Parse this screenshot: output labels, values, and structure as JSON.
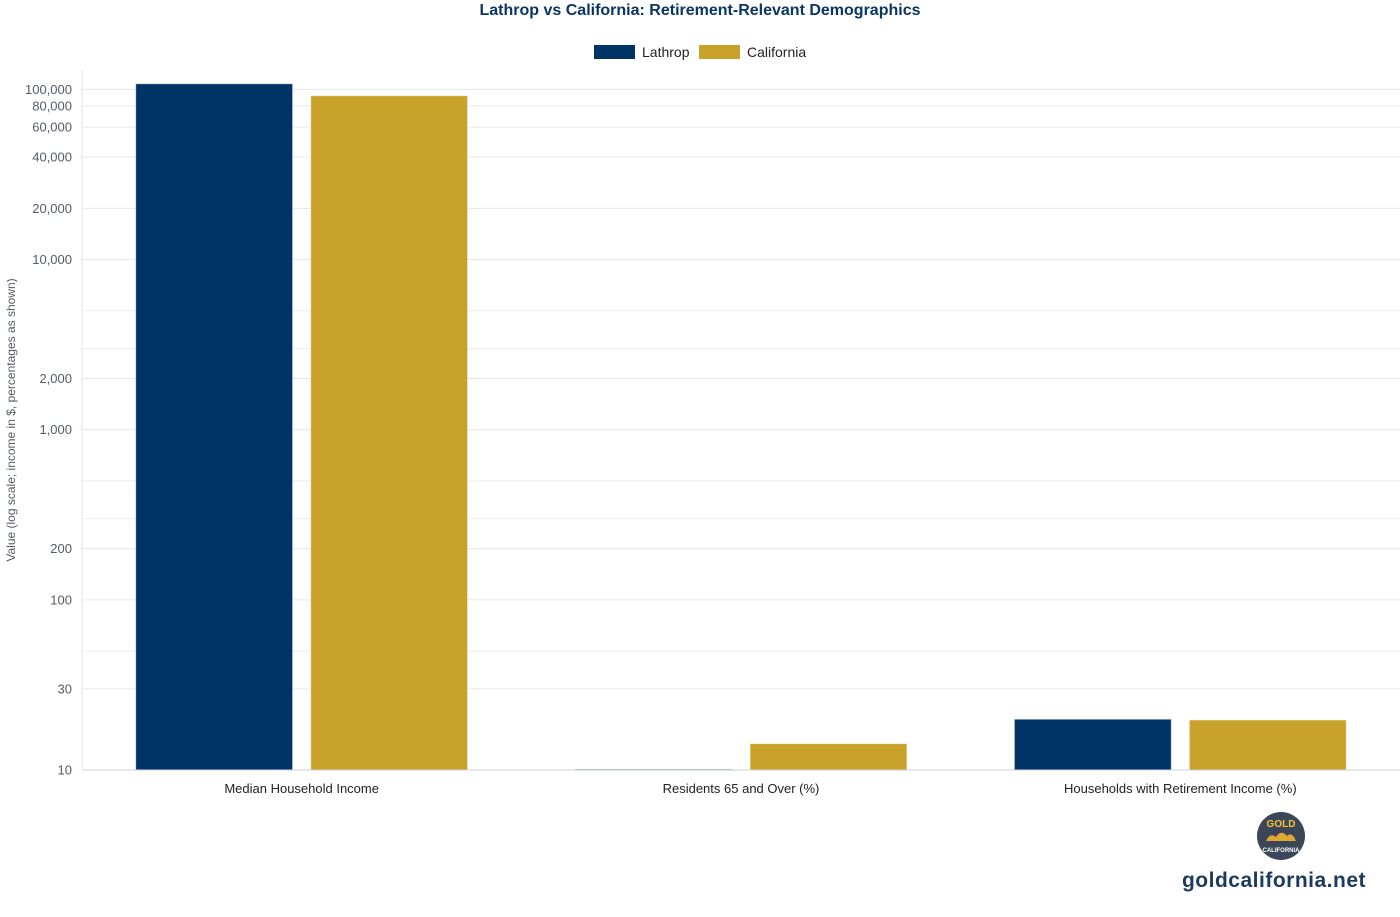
{
  "chart_data": {
    "type": "bar",
    "title": "Lathrop vs California: Retirement-Relevant Demographics",
    "ylabel": "Value (log scale; income in $, percentages as shown)",
    "xlabel": "",
    "yscale": "log",
    "ylim": [
      10,
      130000
    ],
    "yticks": [
      {
        "value": 10,
        "label": "10"
      },
      {
        "value": 30,
        "label": "30"
      },
      {
        "value": 100,
        "label": "100"
      },
      {
        "value": 200,
        "label": "200"
      },
      {
        "value": 1000,
        "label": "1,000"
      },
      {
        "value": 2000,
        "label": "2,000"
      },
      {
        "value": 10000,
        "label": "10,000"
      },
      {
        "value": 20000,
        "label": "20,000"
      },
      {
        "value": 40000,
        "label": "40,000"
      },
      {
        "value": 60000,
        "label": "60,000"
      },
      {
        "value": 80000,
        "label": "80,000"
      },
      {
        "value": 100000,
        "label": "100,000"
      }
    ],
    "grid": true,
    "legend_position": "top-center",
    "categories": [
      "Median Household Income",
      "Residents 65 and Over (%)",
      "Households with Retirement Income (%)"
    ],
    "series": [
      {
        "name": "Lathrop",
        "color": "#003366",
        "values": [
          108000,
          10.1,
          19.9
        ]
      },
      {
        "name": "California",
        "color": "#c9a22b",
        "values": [
          91900,
          14.3,
          19.7
        ]
      }
    ]
  },
  "watermark": {
    "text": "goldcalifornia.net",
    "logo_top": "GOLD",
    "logo_bottom": "CALIFORNIA"
  }
}
